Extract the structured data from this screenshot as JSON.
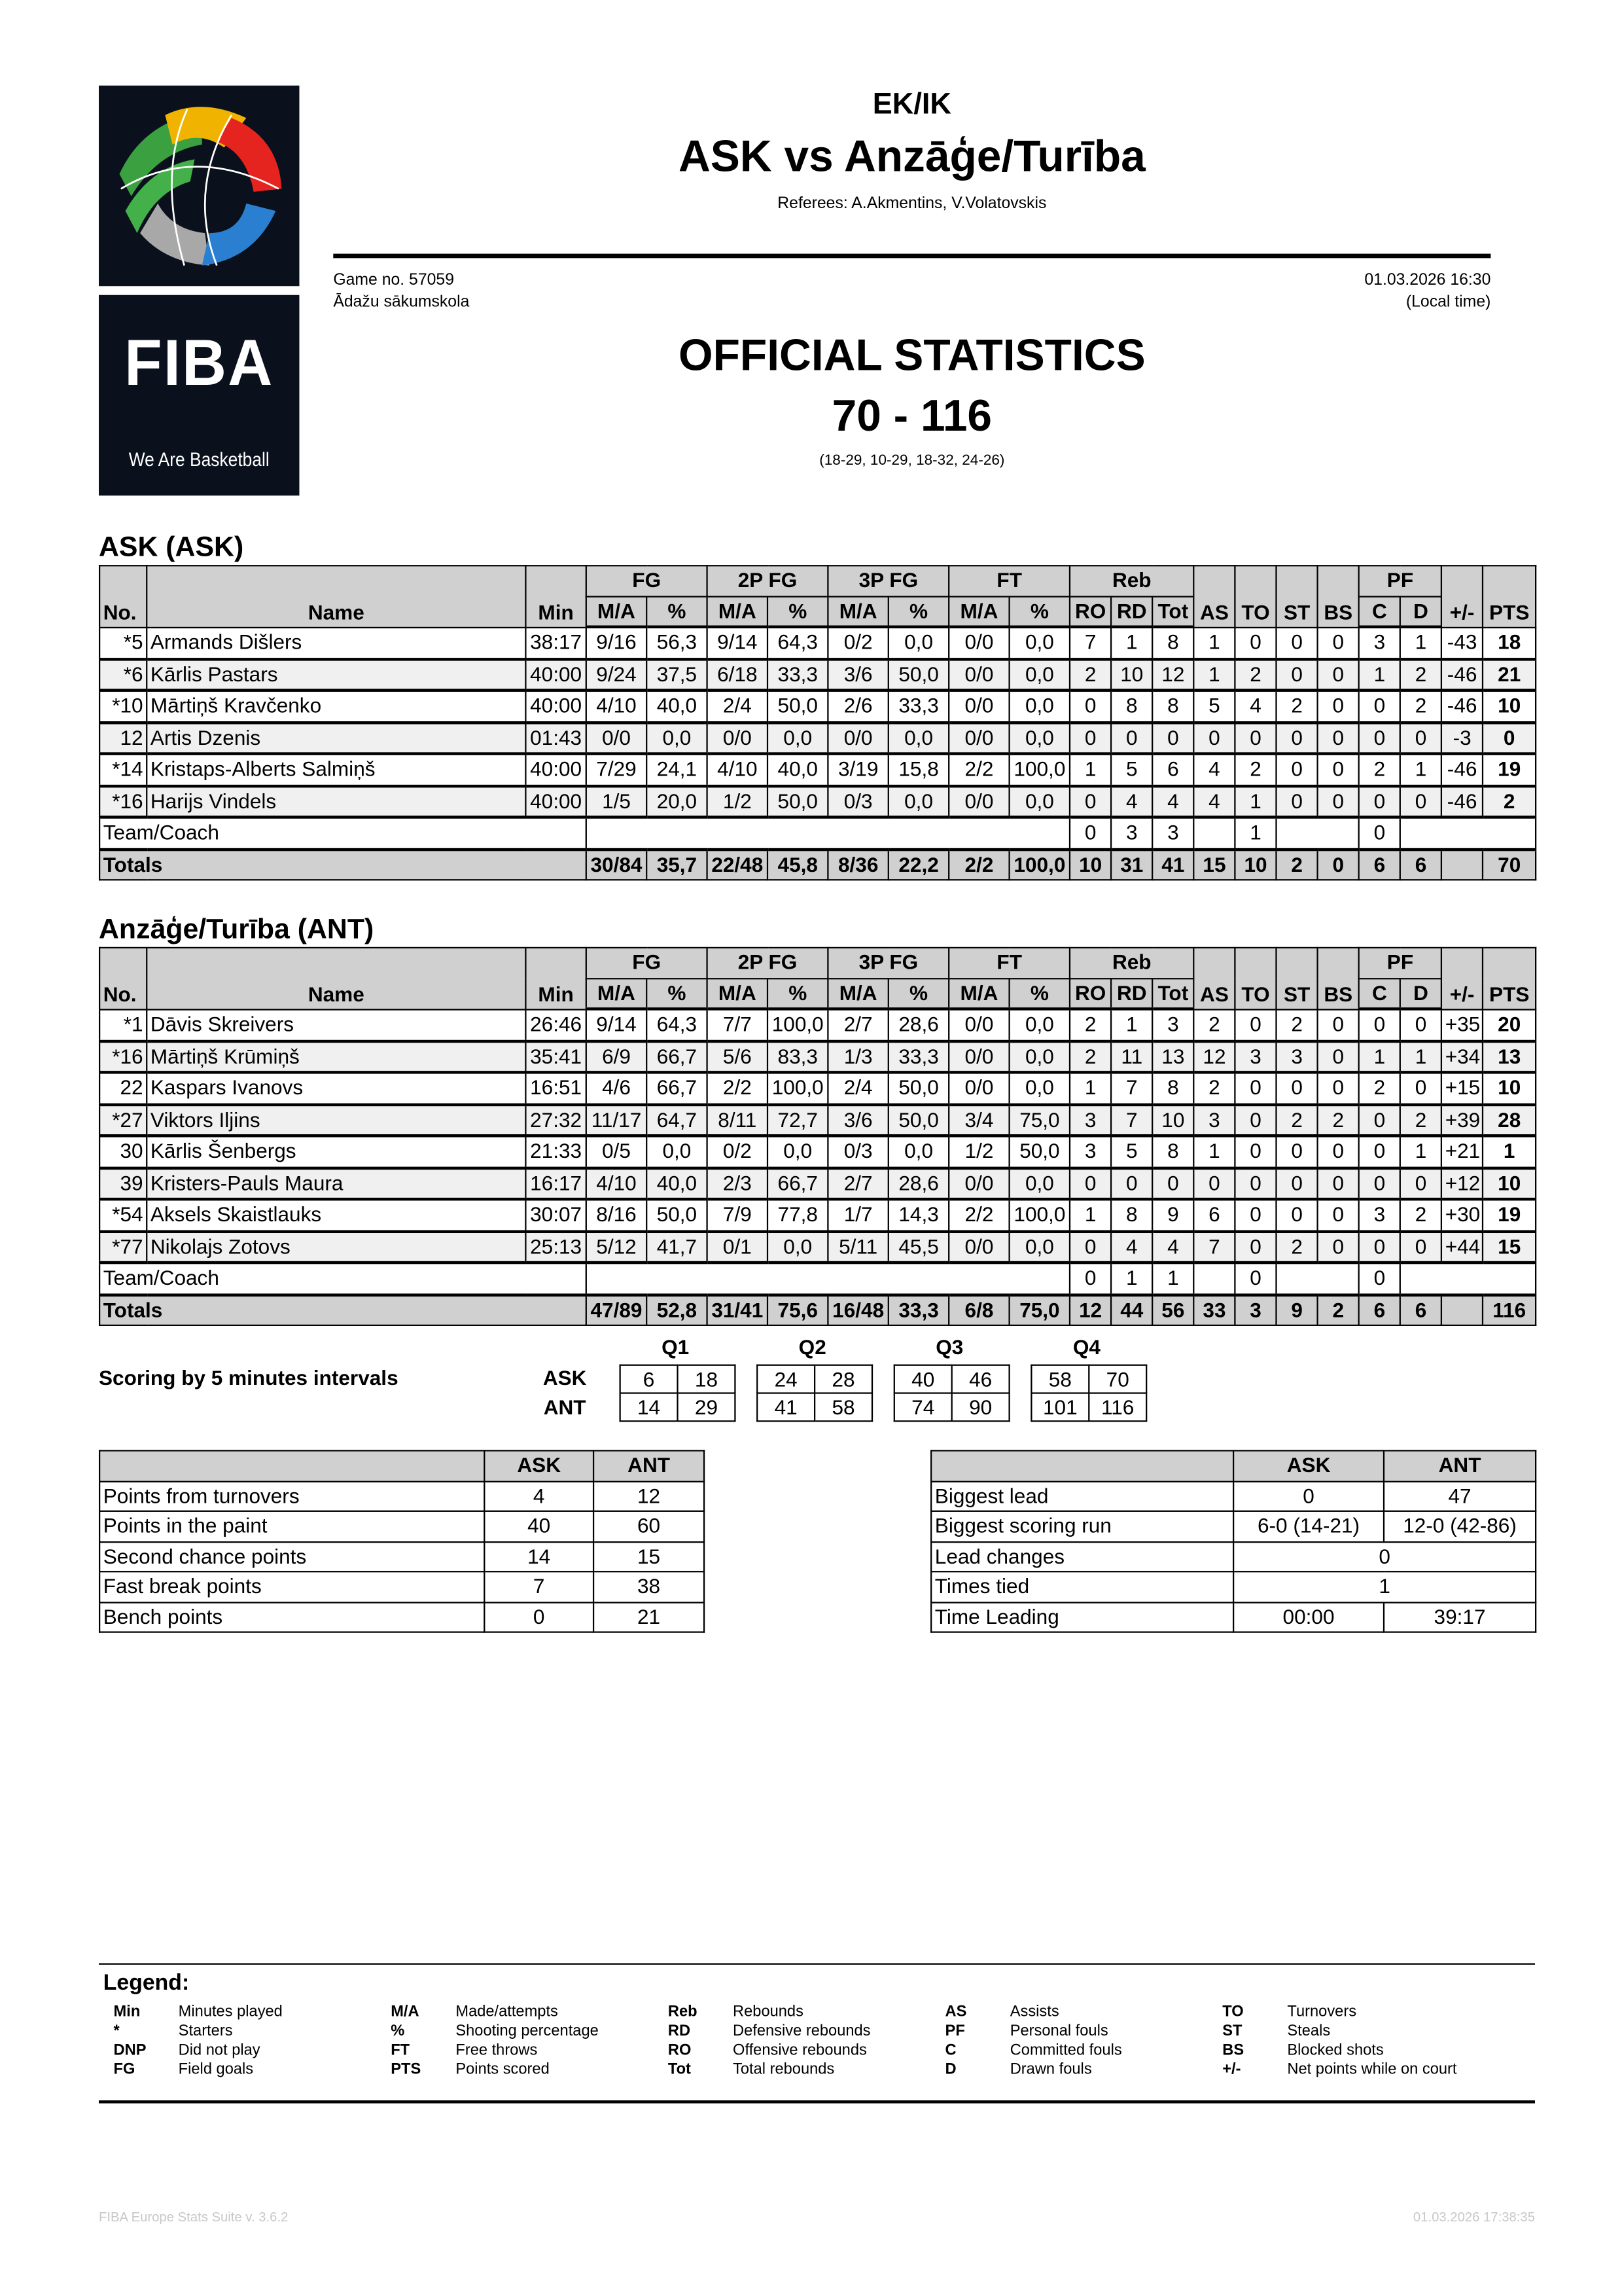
{
  "header": {
    "competition": "EK/IK",
    "title": "ASK vs Anzāģe/Turība",
    "referees": "Referees: A.Akmentins, V.Volatovskis",
    "game_no": "Game no. 57059",
    "venue": "Ādažu sākumskola",
    "datetime": "01.03.2026 16:30",
    "local_time": "(Local time)",
    "report_title": "OFFICIAL STATISTICS",
    "score": "70 - 116",
    "quarters": "(18-29, 10-29, 18-32, 24-26)"
  },
  "logo": {
    "text": "FIBA",
    "tagline": "We Are Basketball",
    "background": "#0b111c"
  },
  "columns": {
    "groups": [
      "FG",
      "2P FG",
      "3P FG",
      "FT",
      "Reb",
      "PF"
    ],
    "sub": [
      "No.",
      "Name",
      "Min",
      "M/A",
      "%",
      "M/A",
      "%",
      "M/A",
      "%",
      "M/A",
      "%",
      "RO",
      "RD",
      "Tot",
      "AS",
      "TO",
      "ST",
      "BS",
      "C",
      "D",
      "+/-",
      "PTS"
    ]
  },
  "teams": [
    {
      "heading": "ASK (ASK)",
      "players": [
        [
          "*5",
          "Armands Dišlers",
          "38:17",
          "9/16",
          "56,3",
          "9/14",
          "64,3",
          "0/2",
          "0,0",
          "0/0",
          "0,0",
          "7",
          "1",
          "8",
          "1",
          "0",
          "0",
          "0",
          "3",
          "1",
          "-43",
          "18"
        ],
        [
          "*6",
          "Kārlis Pastars",
          "40:00",
          "9/24",
          "37,5",
          "6/18",
          "33,3",
          "3/6",
          "50,0",
          "0/0",
          "0,0",
          "2",
          "10",
          "12",
          "1",
          "2",
          "0",
          "0",
          "1",
          "2",
          "-46",
          "21"
        ],
        [
          "*10",
          "Mārtiņš Kravčenko",
          "40:00",
          "4/10",
          "40,0",
          "2/4",
          "50,0",
          "2/6",
          "33,3",
          "0/0",
          "0,0",
          "0",
          "8",
          "8",
          "5",
          "4",
          "2",
          "0",
          "0",
          "2",
          "-46",
          "10"
        ],
        [
          "12",
          "Artis Dzenis",
          "01:43",
          "0/0",
          "0,0",
          "0/0",
          "0,0",
          "0/0",
          "0,0",
          "0/0",
          "0,0",
          "0",
          "0",
          "0",
          "0",
          "0",
          "0",
          "0",
          "0",
          "0",
          "-3",
          "0"
        ],
        [
          "*14",
          "Kristaps-Alberts Salmiņš",
          "40:00",
          "7/29",
          "24,1",
          "4/10",
          "40,0",
          "3/19",
          "15,8",
          "2/2",
          "100,0",
          "1",
          "5",
          "6",
          "4",
          "2",
          "0",
          "0",
          "2",
          "1",
          "-46",
          "19"
        ],
        [
          "*16",
          "Harijs Vindels",
          "40:00",
          "1/5",
          "20,0",
          "1/2",
          "50,0",
          "0/3",
          "0,0",
          "0/0",
          "0,0",
          "0",
          "4",
          "4",
          "4",
          "1",
          "0",
          "0",
          "0",
          "0",
          "-46",
          "2"
        ]
      ],
      "team_coach": {
        "label": "Team/Coach",
        "ro": "0",
        "rd": "3",
        "tot": "3",
        "to": "1",
        "c": "0"
      },
      "totals": [
        "Totals",
        "30/84",
        "35,7",
        "22/48",
        "45,8",
        "8/36",
        "22,2",
        "2/2",
        "100,0",
        "10",
        "31",
        "41",
        "15",
        "10",
        "2",
        "0",
        "6",
        "6",
        "",
        "70"
      ]
    },
    {
      "heading": "Anzāģe/Turība (ANT)",
      "players": [
        [
          "*1",
          "Dāvis Skreivers",
          "26:46",
          "9/14",
          "64,3",
          "7/7",
          "100,0",
          "2/7",
          "28,6",
          "0/0",
          "0,0",
          "2",
          "1",
          "3",
          "2",
          "0",
          "2",
          "0",
          "0",
          "0",
          "+35",
          "20"
        ],
        [
          "*16",
          "Mārtiņš Krūmiņš",
          "35:41",
          "6/9",
          "66,7",
          "5/6",
          "83,3",
          "1/3",
          "33,3",
          "0/0",
          "0,0",
          "2",
          "11",
          "13",
          "12",
          "3",
          "3",
          "0",
          "1",
          "1",
          "+34",
          "13"
        ],
        [
          "22",
          "Kaspars Ivanovs",
          "16:51",
          "4/6",
          "66,7",
          "2/2",
          "100,0",
          "2/4",
          "50,0",
          "0/0",
          "0,0",
          "1",
          "7",
          "8",
          "2",
          "0",
          "0",
          "0",
          "2",
          "0",
          "+15",
          "10"
        ],
        [
          "*27",
          "Viktors Iljins",
          "27:32",
          "11/17",
          "64,7",
          "8/11",
          "72,7",
          "3/6",
          "50,0",
          "3/4",
          "75,0",
          "3",
          "7",
          "10",
          "3",
          "0",
          "2",
          "2",
          "0",
          "2",
          "+39",
          "28"
        ],
        [
          "30",
          "Kārlis Šenbergs",
          "21:33",
          "0/5",
          "0,0",
          "0/2",
          "0,0",
          "0/3",
          "0,0",
          "1/2",
          "50,0",
          "3",
          "5",
          "8",
          "1",
          "0",
          "0",
          "0",
          "0",
          "1",
          "+21",
          "1"
        ],
        [
          "39",
          "Kristers-Pauls Maura",
          "16:17",
          "4/10",
          "40,0",
          "2/3",
          "66,7",
          "2/7",
          "28,6",
          "0/0",
          "0,0",
          "0",
          "0",
          "0",
          "0",
          "0",
          "0",
          "0",
          "0",
          "0",
          "+12",
          "10"
        ],
        [
          "*54",
          "Aksels Skaistlauks",
          "30:07",
          "8/16",
          "50,0",
          "7/9",
          "77,8",
          "1/7",
          "14,3",
          "2/2",
          "100,0",
          "1",
          "8",
          "9",
          "6",
          "0",
          "0",
          "0",
          "3",
          "2",
          "+30",
          "19"
        ],
        [
          "*77",
          "Nikolajs Zotovs",
          "25:13",
          "5/12",
          "41,7",
          "0/1",
          "0,0",
          "5/11",
          "45,5",
          "0/0",
          "0,0",
          "0",
          "4",
          "4",
          "7",
          "0",
          "2",
          "0",
          "0",
          "0",
          "+44",
          "15"
        ]
      ],
      "team_coach": {
        "label": "Team/Coach",
        "ro": "0",
        "rd": "1",
        "tot": "1",
        "to": "0",
        "c": "0"
      },
      "totals": [
        "Totals",
        "47/89",
        "52,8",
        "31/41",
        "75,6",
        "16/48",
        "33,3",
        "6/8",
        "75,0",
        "12",
        "44",
        "56",
        "33",
        "3",
        "9",
        "2",
        "6",
        "6",
        "",
        "116"
      ]
    }
  ],
  "scoring": {
    "title": "Scoring by 5 minutes intervals",
    "quarters": [
      "Q1",
      "Q2",
      "Q3",
      "Q4"
    ],
    "teams": [
      "ASK",
      "ANT"
    ],
    "values": {
      "ASK": [
        [
          "6",
          "18"
        ],
        [
          "24",
          "28"
        ],
        [
          "40",
          "46"
        ],
        [
          "58",
          "70"
        ]
      ],
      "ANT": [
        [
          "14",
          "29"
        ],
        [
          "41",
          "58"
        ],
        [
          "74",
          "90"
        ],
        [
          "101",
          "116"
        ]
      ]
    }
  },
  "points_table": {
    "headers": [
      "",
      "ASK",
      "ANT"
    ],
    "rows": [
      [
        "Points from turnovers",
        "4",
        "12"
      ],
      [
        "Points in the paint",
        "40",
        "60"
      ],
      [
        "Second chance points",
        "14",
        "15"
      ],
      [
        "Fast break points",
        "7",
        "38"
      ],
      [
        "Bench points",
        "0",
        "21"
      ]
    ]
  },
  "lead_table": {
    "headers": [
      "",
      "ASK",
      "ANT"
    ],
    "rows": [
      [
        "Biggest lead",
        "0",
        "47"
      ],
      [
        "Biggest scoring run",
        "6-0 (14-21)",
        "12-0 (42-86)"
      ],
      [
        "Lead changes",
        "0"
      ],
      [
        "Times tied",
        "1"
      ],
      [
        "Time Leading",
        "00:00",
        "39:17"
      ]
    ]
  },
  "legend": {
    "title": "Legend:",
    "columns": [
      [
        [
          "Min",
          "Minutes played"
        ],
        [
          "*",
          "Starters"
        ],
        [
          "DNP",
          "Did not play"
        ],
        [
          "FG",
          "Field goals"
        ]
      ],
      [
        [
          "M/A",
          "Made/attempts"
        ],
        [
          "%",
          "Shooting percentage"
        ],
        [
          "FT",
          "Free throws"
        ],
        [
          "PTS",
          "Points scored"
        ]
      ],
      [
        [
          "Reb",
          "Rebounds"
        ],
        [
          "RD",
          "Defensive rebounds"
        ],
        [
          "RO",
          "Offensive rebounds"
        ],
        [
          "Tot",
          "Total rebounds"
        ]
      ],
      [
        [
          "AS",
          "Assists"
        ],
        [
          "PF",
          "Personal fouls"
        ],
        [
          "C",
          "Committed fouls"
        ],
        [
          "D",
          "Drawn fouls"
        ]
      ],
      [
        [
          "TO",
          "Turnovers"
        ],
        [
          "ST",
          "Steals"
        ],
        [
          "BS",
          "Blocked shots"
        ],
        [
          "+/-",
          "Net points while on court"
        ]
      ]
    ]
  },
  "footer": {
    "software": "FIBA Europe Stats Suite v. 3.6.2",
    "printed": "01.03.2026 17:38:35"
  }
}
